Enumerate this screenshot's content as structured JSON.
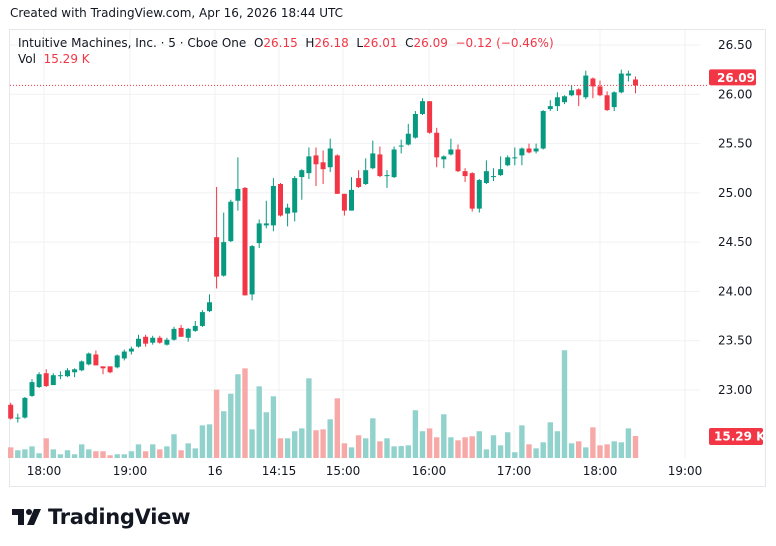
{
  "created": "Created with TradingView.com, Apr 16, 2026 18:44 UTC",
  "legend": {
    "symbol": "Intuitive Machines, Inc. · 5 · Cboe One",
    "o_label": "O",
    "o": "26.15",
    "h_label": "H",
    "h": "26.18",
    "l_label": "L",
    "l": "26.01",
    "c_label": "C",
    "c": "26.09",
    "change": "−0.12 (−0.46%)",
    "vol_label": "Vol",
    "vol": "15.29 K"
  },
  "last_price_label": "26.09",
  "last_volume_label": "15.29 K",
  "logo_text": "TradingView",
  "colors": {
    "up": "#089981",
    "down": "#f23645",
    "up_vol": "#92d2cc",
    "down_vol": "#f7a9a7",
    "grid": "#f0f1f3"
  },
  "chart_data": {
    "type": "candlestick",
    "title": "Intuitive Machines, Inc. · 5 · Cboe One",
    "ylim": [
      22.55,
      26.65
    ],
    "y_ticks": [
      "26.50",
      "26.00",
      "25.50",
      "25.00",
      "24.50",
      "24.00",
      "23.50",
      "23.00"
    ],
    "x_ticks": [
      "18:00",
      "19:00",
      "16",
      "14:15",
      "15:00",
      "16:00",
      "17:00",
      "18:00",
      "19:00"
    ],
    "grid": true,
    "ohlc": [
      [
        22.85,
        22.87,
        22.7,
        22.71
      ],
      [
        22.71,
        22.76,
        22.67,
        22.72
      ],
      [
        22.72,
        22.93,
        22.71,
        22.92
      ],
      [
        22.94,
        23.11,
        22.93,
        23.08
      ],
      [
        23.03,
        23.18,
        23.02,
        23.16
      ],
      [
        23.17,
        23.21,
        23.03,
        23.04
      ],
      [
        23.05,
        23.17,
        23.05,
        23.15
      ],
      [
        23.15,
        23.19,
        23.11,
        23.15
      ],
      [
        23.14,
        23.22,
        23.13,
        23.2
      ],
      [
        23.18,
        23.22,
        23.13,
        23.21
      ],
      [
        23.2,
        23.3,
        23.19,
        23.29
      ],
      [
        23.26,
        23.38,
        23.25,
        23.37
      ],
      [
        23.36,
        23.4,
        23.25,
        23.25
      ],
      [
        23.24,
        23.24,
        23.16,
        23.22
      ],
      [
        23.24,
        23.24,
        23.17,
        23.18
      ],
      [
        23.23,
        23.36,
        23.22,
        23.35
      ],
      [
        23.32,
        23.41,
        23.3,
        23.39
      ],
      [
        23.39,
        23.44,
        23.36,
        23.42
      ],
      [
        23.44,
        23.56,
        23.43,
        23.52
      ],
      [
        23.54,
        23.56,
        23.44,
        23.47
      ],
      [
        23.48,
        23.55,
        23.46,
        23.53
      ],
      [
        23.53,
        23.55,
        23.47,
        23.48
      ],
      [
        23.46,
        23.53,
        23.45,
        23.51
      ],
      [
        23.51,
        23.64,
        23.5,
        23.62
      ],
      [
        23.63,
        23.66,
        23.54,
        23.54
      ],
      [
        23.53,
        23.63,
        23.49,
        23.62
      ],
      [
        23.6,
        23.7,
        23.59,
        23.65
      ],
      [
        23.65,
        23.81,
        23.64,
        23.79
      ],
      [
        23.8,
        23.97,
        23.79,
        23.89
      ],
      [
        24.55,
        25.06,
        24.03,
        24.15
      ],
      [
        24.16,
        24.8,
        24.15,
        24.5
      ],
      [
        24.51,
        24.93,
        24.5,
        24.91
      ],
      [
        24.92,
        25.36,
        24.82,
        25.04
      ],
      [
        25.05,
        25.06,
        23.96,
        23.96
      ],
      [
        23.97,
        24.47,
        23.91,
        24.46
      ],
      [
        24.49,
        24.73,
        24.44,
        24.69
      ],
      [
        24.67,
        24.92,
        24.64,
        24.69
      ],
      [
        24.67,
        25.15,
        24.61,
        25.07
      ],
      [
        25.09,
        25.1,
        24.76,
        24.77
      ],
      [
        24.79,
        24.89,
        24.66,
        24.85
      ],
      [
        24.8,
        25.17,
        24.71,
        25.15
      ],
      [
        25.16,
        25.24,
        24.93,
        25.23
      ],
      [
        25.2,
        25.46,
        25.14,
        25.37
      ],
      [
        25.38,
        25.46,
        25.07,
        25.29
      ],
      [
        25.31,
        25.43,
        25.09,
        25.24
      ],
      [
        25.26,
        25.55,
        25.21,
        25.45
      ],
      [
        25.38,
        25.39,
        24.99,
        24.99
      ],
      [
        24.99,
        24.99,
        24.77,
        24.82
      ],
      [
        24.82,
        25.16,
        24.82,
        25.03
      ],
      [
        25.15,
        25.23,
        25.05,
        25.06
      ],
      [
        25.09,
        25.35,
        25.08,
        25.23
      ],
      [
        25.25,
        25.53,
        25.24,
        25.4
      ],
      [
        25.39,
        25.47,
        25.16,
        25.17
      ],
      [
        25.18,
        25.23,
        25.05,
        25.18
      ],
      [
        25.16,
        25.47,
        25.15,
        25.44
      ],
      [
        25.48,
        25.54,
        25.4,
        25.48
      ],
      [
        25.49,
        25.7,
        25.48,
        25.6
      ],
      [
        25.56,
        25.83,
        25.55,
        25.8
      ],
      [
        25.8,
        25.96,
        25.79,
        25.93
      ],
      [
        25.93,
        25.93,
        25.6,
        25.61
      ],
      [
        25.61,
        25.66,
        25.26,
        25.36
      ],
      [
        25.34,
        25.38,
        25.25,
        25.37
      ],
      [
        25.39,
        25.55,
        25.38,
        25.44
      ],
      [
        25.44,
        25.49,
        25.21,
        25.22
      ],
      [
        25.22,
        25.25,
        25.11,
        25.17
      ],
      [
        25.2,
        25.21,
        24.81,
        24.84
      ],
      [
        24.84,
        25.14,
        24.8,
        25.13
      ],
      [
        25.1,
        25.33,
        25.09,
        25.22
      ],
      [
        25.17,
        25.25,
        25.12,
        25.17
      ],
      [
        25.18,
        25.37,
        25.17,
        25.24
      ],
      [
        25.28,
        25.38,
        25.27,
        25.36
      ],
      [
        25.36,
        25.46,
        25.28,
        25.36
      ],
      [
        25.38,
        25.46,
        25.28,
        25.45
      ],
      [
        25.45,
        25.5,
        25.4,
        25.41
      ],
      [
        25.42,
        25.5,
        25.4,
        25.45
      ],
      [
        25.45,
        25.84,
        25.44,
        25.83
      ],
      [
        25.85,
        25.94,
        25.83,
        25.88
      ],
      [
        25.88,
        26.02,
        25.83,
        25.97
      ],
      [
        25.92,
        25.99,
        25.9,
        25.98
      ],
      [
        25.99,
        26.09,
        25.98,
        26.04
      ],
      [
        26.05,
        26.06,
        25.88,
        25.99
      ],
      [
        25.97,
        26.24,
        25.95,
        26.19
      ],
      [
        26.16,
        26.17,
        25.96,
        26.08
      ],
      [
        26.08,
        26.14,
        25.98,
        25.99
      ],
      [
        25.99,
        26.03,
        25.83,
        25.84
      ],
      [
        25.87,
        26.03,
        25.83,
        26.02
      ],
      [
        26.02,
        26.25,
        26.01,
        26.21
      ],
      [
        26.19,
        26.24,
        26.13,
        26.21
      ],
      [
        26.15,
        26.18,
        26.01,
        26.09
      ]
    ],
    "volume_k": [
      7.4,
      5.4,
      6.0,
      8.1,
      3.3,
      13.7,
      6.0,
      2.6,
      5.4,
      2.6,
      9.5,
      6.0,
      4.7,
      4.7,
      1.9,
      2.6,
      2.6,
      4.7,
      9.5,
      4.7,
      9.5,
      6.0,
      8.1,
      16.5,
      5.4,
      10.2,
      6.7,
      22.7,
      23.4,
      47.5,
      32.5,
      44.7,
      58.2,
      62.3,
      19.9,
      49.8,
      31.8,
      42.9,
      13.7,
      13.7,
      18.6,
      20.6,
      55.4,
      19.3,
      19.9,
      26.9,
      41.5,
      10.2,
      7.4,
      15.8,
      13.7,
      27.6,
      11.6,
      13.7,
      8.1,
      8.3,
      8.8,
      33.2,
      18.6,
      20.6,
      14.4,
      30.4,
      14.4,
      12.3,
      14.4,
      15.1,
      18.6,
      6.0,
      15.8,
      8.8,
      17.9,
      4.0,
      22.7,
      9.5,
      6.7,
      10.9,
      24.8,
      18.6,
      74.9,
      10.2,
      11.6,
      7.4,
      21.3,
      8.8,
      9.5,
      11.6,
      10.9,
      20.6,
      15.29
    ],
    "last_close": 26.09,
    "last_volume_k": 15.29
  }
}
